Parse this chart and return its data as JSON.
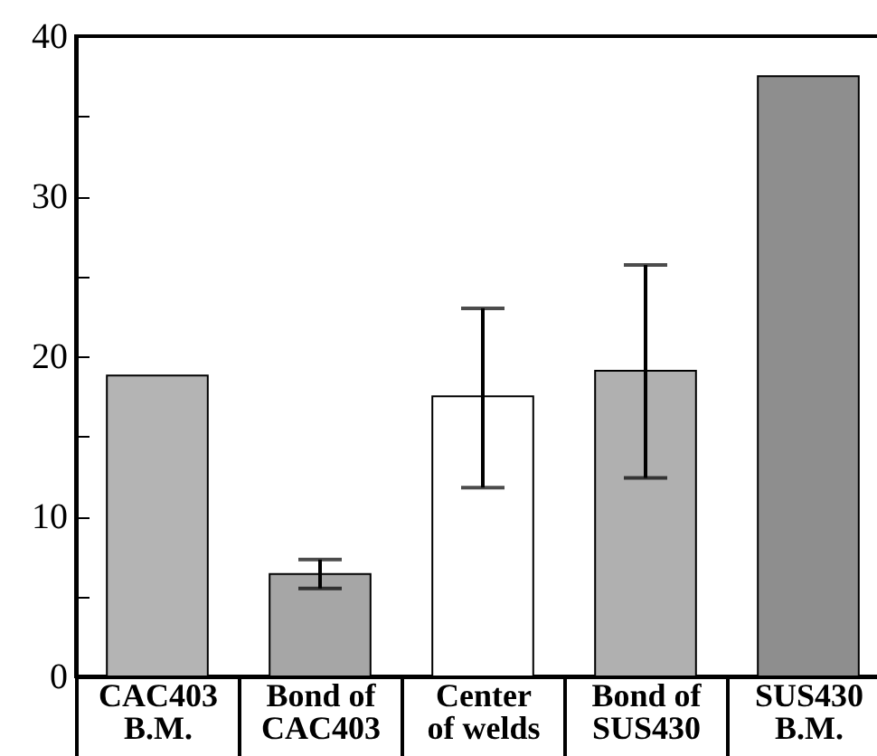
{
  "chart_data": {
    "type": "bar",
    "categories": [
      "CAC403\nB.M.",
      "Bond of\nCAC403",
      "Center\nof welds",
      "Bond of\nSUS430",
      "SUS430\nB.M."
    ],
    "values": [
      18.8,
      6.4,
      17.5,
      19.1,
      37.5
    ],
    "colors": [
      "#b4b4b4",
      "#a6a6a6",
      "#ffffff",
      "#b0b0b0",
      "#8e8e8e"
    ],
    "errors": [
      null,
      [
        5.5,
        7.3
      ],
      [
        11.8,
        23.0
      ],
      [
        12.4,
        25.7
      ],
      null
    ],
    "ylim": [
      0,
      40
    ],
    "yticks": [
      0,
      {
        "value": 5,
        "label": null
      },
      10,
      {
        "value": 15,
        "label": null
      },
      20,
      {
        "value": 25,
        "label": null
      },
      30,
      {
        "value": 35,
        "label": null
      },
      40
    ],
    "grid": false
  }
}
